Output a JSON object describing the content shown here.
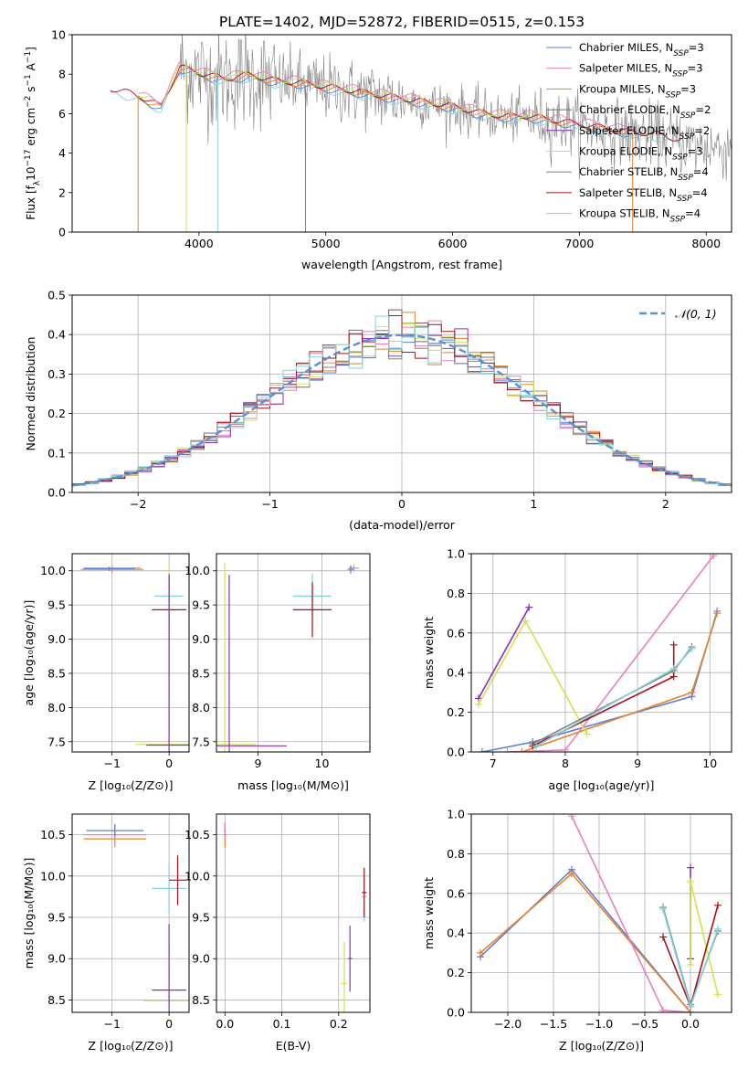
{
  "figure": {
    "title": "PLATE=1402, MJD=52872, FIBERID=0515, z=0.153"
  },
  "colors": {
    "Chabrier MILES": "#5b7fd6",
    "Salpeter MILES": "#e87fbd",
    "Kroupa MILES": "#e8832a",
    "Chabrier ELODIE": "#6f6f6f",
    "Salpeter ELODIE": "#8e2fb3",
    "Kroupa ELODIE": "#cfe34f",
    "Chabrier STELIB": "#808080",
    "Salpeter STELIB": "#a8101a",
    "Kroupa STELIB": "#7fd3dc",
    "normal": "#5b8fd6"
  },
  "chart_data": [
    {
      "id": "spectrum",
      "type": "line",
      "xlabel": "wavelength [Angstrom, rest frame]",
      "ylabel_parts": [
        "Flux [f",
        "λ",
        "10",
        "−17",
        " erg cm",
        "−2",
        " s",
        "−1",
        " A",
        "−1",
        "]"
      ],
      "xlim": [
        3000,
        8200
      ],
      "ylim": [
        0,
        10
      ],
      "xticks": [
        4000,
        5000,
        6000,
        7000,
        8000
      ],
      "yticks": [
        0,
        2,
        4,
        6,
        8,
        10
      ],
      "grid": false,
      "legend_position": "top-right",
      "data_anchor": {
        "x": [
          3300,
          3500,
          3700,
          3850,
          4000,
          4200,
          4400,
          4600,
          4800,
          5000,
          5200,
          5400,
          5600,
          5800,
          6000,
          6200,
          6400,
          6600,
          6800,
          7000,
          7200,
          7400,
          7600,
          7800,
          8000
        ],
        "y": [
          7.2,
          6.9,
          6.3,
          8.3,
          8.0,
          7.7,
          7.9,
          7.6,
          7.5,
          7.3,
          7.1,
          6.9,
          6.7,
          6.5,
          6.3,
          6.0,
          5.8,
          5.8,
          5.6,
          5.4,
          5.2,
          5.0,
          4.9,
          4.6,
          4.3
        ]
      },
      "legend": [
        {
          "name": "Chabrier MILES",
          "nssp": "3"
        },
        {
          "name": "Salpeter MILES",
          "nssp": "3"
        },
        {
          "name": "Kroupa MILES",
          "nssp": "3"
        },
        {
          "name": "Chabrier ELODIE",
          "nssp": "2"
        },
        {
          "name": "Salpeter ELODIE",
          "nssp": "2"
        },
        {
          "name": "Kroupa ELODIE",
          "nssp": "3"
        },
        {
          "name": "Chabrier STELIB",
          "nssp": "4"
        },
        {
          "name": "Salpeter STELIB",
          "nssp": "4"
        },
        {
          "name": "Kroupa STELIB",
          "nssp": "4"
        }
      ]
    },
    {
      "id": "residuals",
      "type": "line",
      "xlabel": "(data-model)/error",
      "ylabel": "Normed distribution",
      "xlim": [
        -2.5,
        2.5
      ],
      "ylim": [
        0,
        0.5
      ],
      "xticks": [
        -2,
        -1,
        0,
        1,
        2
      ],
      "yticks": [
        0.0,
        0.1,
        0.2,
        0.3,
        0.4,
        0.5
      ],
      "grid": true,
      "legend": "𝒩(0, 1)",
      "legend_position": "top-right"
    },
    {
      "id": "age-vs-z",
      "type": "scatter",
      "xlabel": "Z [log₁₀(Z/Z⊙)]",
      "ylabel": "age  [log₁₀(age/yr)]",
      "xlim": [
        -1.7,
        0.35
      ],
      "ylim": [
        7.35,
        10.25
      ],
      "xticks": [
        -1,
        0
      ],
      "yticks": [
        7.5,
        8.0,
        8.5,
        9.0,
        9.5,
        10.0
      ],
      "grid": true
    },
    {
      "id": "age-vs-mass",
      "type": "scatter",
      "xlabel": "mass [log₁₀(M/M⊙)]",
      "xlim": [
        8.35,
        10.75
      ],
      "ylim": [
        7.35,
        10.25
      ],
      "xticks": [
        9,
        10
      ],
      "yticks": [
        7.5,
        8.0,
        8.5,
        9.0,
        9.5,
        10.0
      ],
      "grid": true
    },
    {
      "id": "weight-vs-age",
      "type": "line",
      "xlabel": "age  [log₁₀(age/yr)]",
      "ylabel": "mass weight",
      "xlim": [
        6.7,
        10.3
      ],
      "ylim": [
        0,
        1.0
      ],
      "xticks": [
        7,
        8,
        9,
        10
      ],
      "yticks": [
        0.0,
        0.2,
        0.4,
        0.6,
        0.8,
        1.0
      ],
      "grid": true,
      "series": [
        {
          "model": "Chabrier MILES",
          "x": [
            6.85,
            7.55,
            9.75,
            10.1
          ],
          "y": [
            0.0,
            0.05,
            0.28,
            0.71
          ]
        },
        {
          "model": "Salpeter MILES",
          "x": [
            7.2,
            8.0,
            10.05
          ],
          "y": [
            0.0,
            0.01,
            0.99
          ]
        },
        {
          "model": "Kroupa MILES",
          "x": [
            7.4,
            9.75,
            10.1
          ],
          "y": [
            0.0,
            0.3,
            0.7
          ]
        },
        {
          "model": "Salpeter ELODIE",
          "x": [
            6.8,
            7.5
          ],
          "y": [
            0.27,
            0.73
          ]
        },
        {
          "model": "Kroupa ELODIE",
          "x": [
            6.8,
            7.45,
            8.3
          ],
          "y": [
            0.24,
            0.66,
            0.09
          ]
        },
        {
          "model": "Chabrier STELIB",
          "x": [
            7.55,
            9.5,
            9.75
          ],
          "y": [
            0.04,
            0.41,
            0.53
          ]
        },
        {
          "model": "Salpeter STELIB",
          "x": [
            7.55,
            9.5,
            9.5
          ],
          "y": [
            0.03,
            0.38,
            0.54
          ]
        },
        {
          "model": "Kroupa STELIB",
          "x": [
            7.6,
            9.5,
            9.75
          ],
          "y": [
            0.03,
            0.42,
            0.52
          ]
        }
      ]
    },
    {
      "id": "mass-vs-z",
      "type": "scatter",
      "xlabel": "Z [log₁₀(Z/Z⊙)]",
      "ylabel": "mass [log₁₀(M/M⊙)]",
      "xlim": [
        -1.7,
        0.35
      ],
      "ylim": [
        8.35,
        10.75
      ],
      "xticks": [
        -1,
        0
      ],
      "yticks": [
        8.5,
        9.0,
        9.5,
        10.0,
        10.5
      ],
      "grid": true
    },
    {
      "id": "mass-vs-ebv",
      "type": "scatter",
      "xlabel": "E(B-V)",
      "xlim": [
        -0.015,
        0.255
      ],
      "ylim": [
        8.35,
        10.75
      ],
      "xticks": [
        0.0,
        0.1,
        0.2
      ],
      "yticks": [
        8.5,
        9.0,
        9.5,
        10.0,
        10.5
      ],
      "grid": true
    },
    {
      "id": "weight-vs-z",
      "type": "line",
      "xlabel": "Z [log₁₀(Z/Z⊙)]",
      "ylabel": "mass weight",
      "xlim": [
        -2.4,
        0.45
      ],
      "ylim": [
        0,
        1.0
      ],
      "xticks": [
        -2.0,
        -1.5,
        -1.0,
        -0.5,
        0.0
      ],
      "yticks": [
        0.0,
        0.2,
        0.4,
        0.6,
        0.8,
        1.0
      ],
      "grid": true,
      "series": [
        {
          "model": "Chabrier MILES",
          "x": [
            -2.3,
            -1.3,
            0.0
          ],
          "y": [
            0.28,
            0.72,
            0.0
          ]
        },
        {
          "model": "Kroupa MILES",
          "x": [
            -2.3,
            -1.3,
            0.0
          ],
          "y": [
            0.3,
            0.7,
            0.0
          ]
        },
        {
          "model": "Salpeter MILES",
          "x": [
            -1.3,
            -0.3,
            0.0
          ],
          "y": [
            0.99,
            0.01,
            0.0
          ]
        },
        {
          "model": "Salpeter ELODIE",
          "x": [
            0.0,
            0.0
          ],
          "y": [
            0.27,
            0.73
          ]
        },
        {
          "model": "Kroupa ELODIE",
          "x": [
            0.0,
            0.0,
            0.3
          ],
          "y": [
            0.24,
            0.66,
            0.09
          ]
        },
        {
          "model": "Chabrier STELIB",
          "x": [
            -0.3,
            0.0,
            0.3
          ],
          "y": [
            0.53,
            0.04,
            0.41
          ]
        },
        {
          "model": "Salpeter STELIB",
          "x": [
            -0.3,
            0.0,
            0.3
          ],
          "y": [
            0.38,
            0.03,
            0.54
          ]
        },
        {
          "model": "Kroupa STELIB",
          "x": [
            -0.3,
            0.0,
            0.3
          ],
          "y": [
            0.52,
            0.03,
            0.42
          ]
        }
      ]
    }
  ]
}
